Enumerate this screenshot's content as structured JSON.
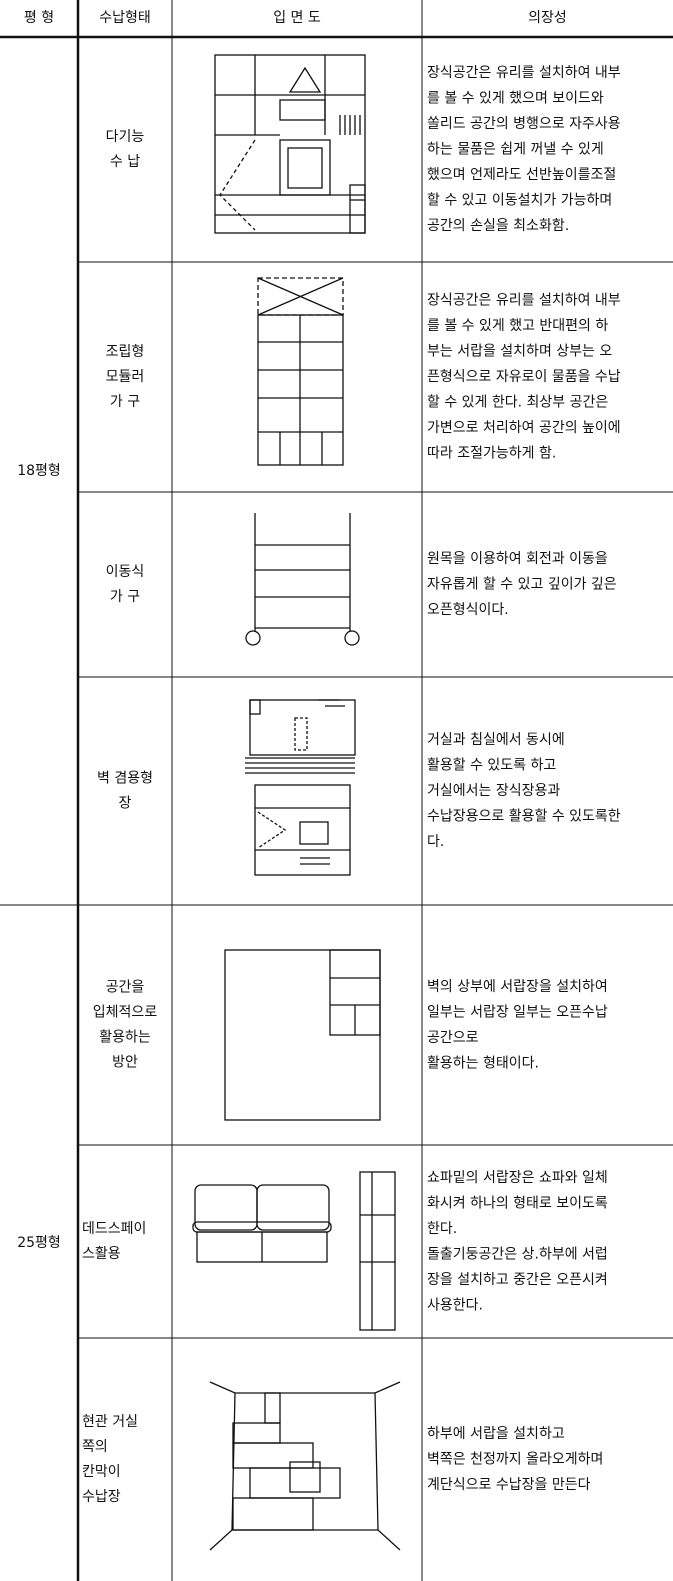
{
  "headers": [
    "평 형",
    "수납형태",
    "입 면 도",
    "의장성"
  ],
  "groups": [
    {
      "label": "18평형",
      "rows": [
        {
          "form": [
            "다기능",
            "수 납"
          ],
          "description": [
            "장식공간은 유리를 설치하여 내부",
            "를 볼 수 있게 했으며 보이드와",
            "쏠리드 공간의 병행으로 자주사용",
            "하는 물품은 쉽게 꺼낼 수 있게",
            "했으며 언제라도 선반높이를조절",
            "할 수 있고 이동설치가 가능하며",
            "공간의 손실을 최소화함."
          ]
        },
        {
          "form": [
            "조립형",
            "모듈러",
            "가 구"
          ],
          "description": [
            "장식공간은 유리를 설치하여 내부",
            "를 볼 수 있게 했고 반대편의 하",
            "부는 서랍을 설치하며 상부는 오",
            "픈형식으로 자유로이 물품을 수납",
            "할 수 있게 한다. 최상부 공간은",
            "가변으로 처리하여 공간의 높이에",
            "따라 조절가능하게 함."
          ]
        },
        {
          "form": [
            "이동식",
            "가 구"
          ],
          "description": [
            "원목을 이용하여 회전과 이동을",
            "자유롭게 할 수 있고 깊이가 깊은",
            "오픈형식이다."
          ]
        },
        {
          "form": [
            "벽 겸용형",
            "장"
          ],
          "description": [
            "거실과 침실에서 동시에",
            "활용할 수 있도록 하고",
            "거실에서는 장식장용과",
            "수납장용으로 활용할 수 있도록한",
            "다."
          ]
        }
      ]
    },
    {
      "label": "25평형",
      "rows": [
        {
          "form": [
            "공간을",
            "입체적으로",
            "활용하는",
            "방안"
          ],
          "description": [
            "벽의 상부에 서랍장을 설치하여",
            "일부는 서랍장 일부는 오픈수납",
            "공간으로",
            "활용하는 형태이다."
          ]
        },
        {
          "form": [
            "데드스페이",
            "스활용"
          ],
          "description": [
            "쇼파밑의 서랍장은 쇼파와 일체",
            "화시켜 하나의 형태로 보이도록",
            "한다.",
            "돌출기둥공간은 상.하부에 서럽",
            "장을 설치하고 중간은 오픈시켜",
            "사용한다."
          ]
        },
        {
          "form": [
            "현관 거실",
            "쪽의",
            "칸막이",
            "수납장"
          ],
          "description": [
            "하부에 서랍을 설치하고",
            "벽쪽은 천정까지 올라오게하며",
            "계단식으로 수납장을 만든다"
          ]
        }
      ]
    }
  ]
}
